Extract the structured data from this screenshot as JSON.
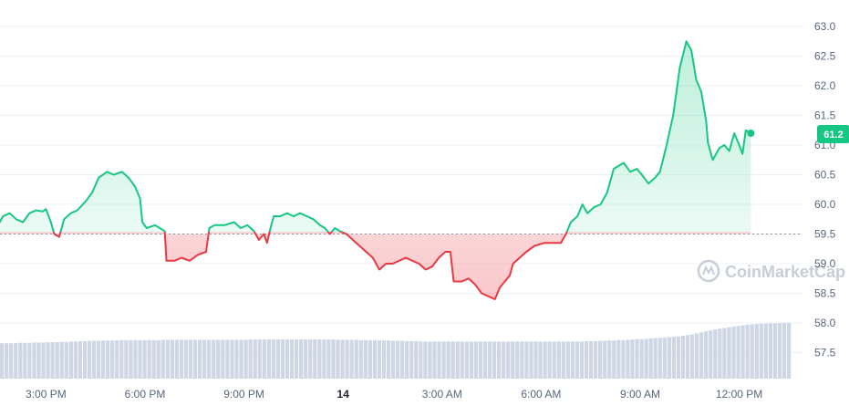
{
  "chart_data": {
    "type": "line",
    "x_tick_labels": [
      "3:00 PM",
      "6:00 PM",
      "9:00 PM",
      "14",
      "3:00 AM",
      "6:00 AM",
      "9:00 AM",
      "12:00 PM"
    ],
    "x_hours_since_1pm": [
      2,
      5,
      8,
      11,
      14,
      17,
      20,
      23
    ],
    "y_tick_labels": [
      "63.0",
      "62.5",
      "62.0",
      "61.5",
      "61.0",
      "60.5",
      "60.0",
      "59.5",
      "59.0",
      "58.5",
      "58.0",
      "57.5"
    ],
    "ylim": [
      57.0,
      63.3
    ],
    "baseline": 59.5,
    "current_price_label": "61.2",
    "grid": true,
    "colors": {
      "up": "#16c784",
      "down": "#ea3943",
      "badge": "#16c784",
      "volume": "#cfd6e4",
      "grid": "#eff2f5"
    },
    "series": [
      {
        "values": [
          [
            0.0,
            59.5
          ],
          [
            0.25,
            59.55
          ],
          [
            0.5,
            59.6
          ],
          [
            0.7,
            59.8
          ],
          [
            0.9,
            59.85
          ],
          [
            1.1,
            59.75
          ],
          [
            1.3,
            59.7
          ],
          [
            1.5,
            59.85
          ],
          [
            1.7,
            59.9
          ],
          [
            1.9,
            59.88
          ],
          [
            2.0,
            59.92
          ],
          [
            2.15,
            59.7
          ],
          [
            2.25,
            59.5
          ],
          [
            2.4,
            59.45
          ],
          [
            2.55,
            59.75
          ],
          [
            2.75,
            59.85
          ],
          [
            2.95,
            59.9
          ],
          [
            3.2,
            60.05
          ],
          [
            3.4,
            60.2
          ],
          [
            3.6,
            60.45
          ],
          [
            3.85,
            60.55
          ],
          [
            4.05,
            60.5
          ],
          [
            4.3,
            60.55
          ],
          [
            4.5,
            60.45
          ],
          [
            4.7,
            60.3
          ],
          [
            4.85,
            60.1
          ],
          [
            4.92,
            59.7
          ],
          [
            5.05,
            59.6
          ],
          [
            5.3,
            59.65
          ],
          [
            5.45,
            59.6
          ],
          [
            5.6,
            59.55
          ],
          [
            5.65,
            59.05
          ],
          [
            5.9,
            59.05
          ],
          [
            6.1,
            59.1
          ],
          [
            6.35,
            59.05
          ],
          [
            6.6,
            59.15
          ],
          [
            6.85,
            59.2
          ],
          [
            6.95,
            59.6
          ],
          [
            7.1,
            59.65
          ],
          [
            7.4,
            59.65
          ],
          [
            7.7,
            59.7
          ],
          [
            7.9,
            59.6
          ],
          [
            8.1,
            59.65
          ],
          [
            8.3,
            59.55
          ],
          [
            8.45,
            59.4
          ],
          [
            8.6,
            59.5
          ],
          [
            8.7,
            59.35
          ],
          [
            8.8,
            59.6
          ],
          [
            8.9,
            59.8
          ],
          [
            9.1,
            59.8
          ],
          [
            9.3,
            59.85
          ],
          [
            9.5,
            59.8
          ],
          [
            9.7,
            59.85
          ],
          [
            9.9,
            59.8
          ],
          [
            10.1,
            59.75
          ],
          [
            10.3,
            59.65
          ],
          [
            10.45,
            59.6
          ],
          [
            10.6,
            59.5
          ],
          [
            10.75,
            59.6
          ],
          [
            10.9,
            59.55
          ],
          [
            11.1,
            59.5
          ],
          [
            11.3,
            59.4
          ],
          [
            11.5,
            59.3
          ],
          [
            11.7,
            59.2
          ],
          [
            11.9,
            59.1
          ],
          [
            12.1,
            58.9
          ],
          [
            12.3,
            59.0
          ],
          [
            12.5,
            59.0
          ],
          [
            12.7,
            59.05
          ],
          [
            12.9,
            59.1
          ],
          [
            13.1,
            59.05
          ],
          [
            13.3,
            59.0
          ],
          [
            13.5,
            58.9
          ],
          [
            13.7,
            58.95
          ],
          [
            13.9,
            59.1
          ],
          [
            14.1,
            59.2
          ],
          [
            14.25,
            59.2
          ],
          [
            14.35,
            58.7
          ],
          [
            14.6,
            58.7
          ],
          [
            14.8,
            58.75
          ],
          [
            15.0,
            58.65
          ],
          [
            15.2,
            58.5
          ],
          [
            15.4,
            58.45
          ],
          [
            15.6,
            58.4
          ],
          [
            15.75,
            58.6
          ],
          [
            15.9,
            58.7
          ],
          [
            16.05,
            58.8
          ],
          [
            16.15,
            59.0
          ],
          [
            16.35,
            59.1
          ],
          [
            16.55,
            59.2
          ],
          [
            16.8,
            59.3
          ],
          [
            17.1,
            59.35
          ],
          [
            17.4,
            59.35
          ],
          [
            17.6,
            59.35
          ],
          [
            17.75,
            59.5
          ],
          [
            17.9,
            59.7
          ],
          [
            18.1,
            59.8
          ],
          [
            18.25,
            60.0
          ],
          [
            18.4,
            59.85
          ],
          [
            18.6,
            59.95
          ],
          [
            18.8,
            60.0
          ],
          [
            19.0,
            60.2
          ],
          [
            19.2,
            60.6
          ],
          [
            19.5,
            60.7
          ],
          [
            19.7,
            60.55
          ],
          [
            19.9,
            60.6
          ],
          [
            20.05,
            60.5
          ],
          [
            20.25,
            60.35
          ],
          [
            20.45,
            60.45
          ],
          [
            20.6,
            60.55
          ],
          [
            20.8,
            61.0
          ],
          [
            21.0,
            61.5
          ],
          [
            21.2,
            62.3
          ],
          [
            21.4,
            62.75
          ],
          [
            21.55,
            62.6
          ],
          [
            21.7,
            62.1
          ],
          [
            21.85,
            61.9
          ],
          [
            22.0,
            61.4
          ],
          [
            22.05,
            61.05
          ],
          [
            22.2,
            60.75
          ],
          [
            22.4,
            60.95
          ],
          [
            22.55,
            61.0
          ],
          [
            22.7,
            60.9
          ],
          [
            22.85,
            61.2
          ],
          [
            23.0,
            61.0
          ],
          [
            23.1,
            60.85
          ],
          [
            23.2,
            61.25
          ],
          [
            23.35,
            61.2
          ]
        ]
      }
    ],
    "volume": [
      1.05,
      1.05,
      1.05,
      1.05,
      1.06,
      1.06,
      1.06,
      1.07,
      1.07,
      1.07,
      1.08,
      1.08,
      1.08,
      1.09,
      1.09,
      1.1,
      1.1,
      1.11,
      1.11,
      1.12,
      1.12,
      1.12,
      1.13,
      1.13,
      1.13,
      1.13,
      1.14,
      1.14,
      1.14,
      1.14,
      1.14,
      1.14,
      1.14,
      1.14,
      1.14,
      1.15,
      1.15,
      1.15,
      1.15,
      1.15,
      1.15,
      1.15,
      1.15,
      1.15,
      1.15,
      1.15,
      1.15,
      1.15,
      1.15,
      1.15,
      1.15,
      1.15,
      1.15,
      1.15,
      1.16,
      1.16,
      1.16,
      1.16,
      1.16,
      1.16,
      1.16,
      1.16,
      1.16,
      1.16,
      1.16,
      1.16,
      1.16,
      1.16,
      1.16,
      1.16,
      1.16,
      1.16,
      1.16,
      1.15,
      1.15,
      1.15,
      1.15,
      1.15,
      1.14,
      1.14,
      1.14,
      1.14,
      1.13,
      1.13,
      1.13,
      1.12,
      1.12,
      1.12,
      1.11,
      1.11,
      1.11,
      1.1,
      1.1,
      1.1,
      1.1,
      1.1,
      1.1,
      1.1,
      1.1,
      1.1,
      1.1,
      1.1,
      1.1,
      1.1,
      1.1,
      1.1,
      1.1,
      1.1,
      1.1,
      1.1,
      1.1,
      1.1,
      1.1,
      1.1,
      1.1,
      1.1,
      1.1,
      1.1,
      1.1,
      1.1,
      1.1,
      1.1,
      1.1,
      1.1,
      1.1,
      1.1,
      1.1,
      1.11,
      1.11,
      1.11,
      1.12,
      1.12,
      1.13,
      1.13,
      1.14,
      1.14,
      1.15,
      1.16,
      1.17,
      1.17,
      1.18,
      1.19,
      1.2,
      1.21,
      1.22,
      1.23,
      1.24,
      1.25,
      1.27,
      1.29,
      1.31,
      1.34,
      1.37,
      1.4,
      1.43,
      1.46,
      1.48,
      1.5,
      1.52,
      1.54,
      1.56,
      1.58,
      1.6,
      1.61,
      1.62,
      1.63,
      1.63,
      1.64,
      1.64,
      1.65,
      1.65,
      1.65
    ]
  },
  "watermark": {
    "text": "CoinMarketCap"
  }
}
